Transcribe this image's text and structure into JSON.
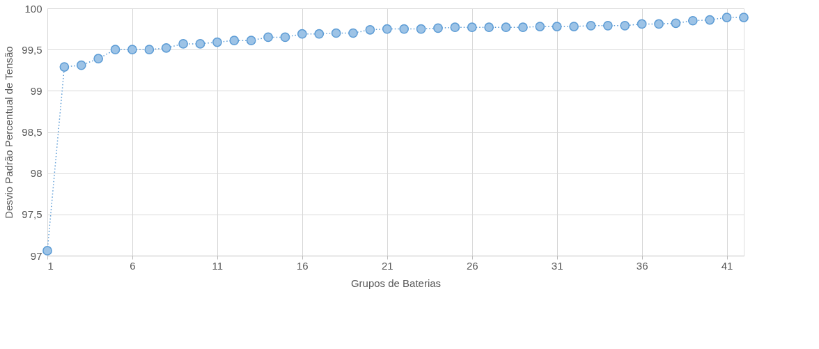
{
  "chart_data": {
    "type": "line",
    "xlabel": "Grupos de Baterias",
    "ylabel": "Desvio Padrão Percentual de Tensão",
    "x": [
      1,
      2,
      3,
      4,
      5,
      6,
      7,
      8,
      9,
      10,
      11,
      12,
      13,
      14,
      15,
      16,
      17,
      18,
      19,
      20,
      21,
      22,
      23,
      24,
      25,
      26,
      27,
      28,
      29,
      30,
      31,
      32,
      33,
      34,
      35,
      36,
      37,
      38,
      39,
      40,
      41,
      42
    ],
    "series": [
      {
        "color": "#5b9bd5",
        "values": [
          97.06,
          99.29,
          99.31,
          99.39,
          99.5,
          99.5,
          99.5,
          99.52,
          99.57,
          99.57,
          99.59,
          99.61,
          99.61,
          99.65,
          99.65,
          99.69,
          99.69,
          99.7,
          99.7,
          99.74,
          99.75,
          99.75,
          99.75,
          99.76,
          99.77,
          99.77,
          99.77,
          99.77,
          99.77,
          99.78,
          99.78,
          99.78,
          99.79,
          99.79,
          99.79,
          99.81,
          99.81,
          99.82,
          99.85,
          99.86,
          99.89,
          99.89
        ]
      }
    ],
    "xlim": [
      1,
      42
    ],
    "xticks": [
      1,
      6,
      11,
      16,
      21,
      26,
      31,
      36,
      41
    ],
    "ylim": [
      97,
      100
    ],
    "yticks": [
      97,
      {
        "value": 97.5,
        "label": "97,5"
      },
      98,
      {
        "value": 98.5,
        "label": "98,5"
      },
      99,
      {
        "value": 99.5,
        "label": "99,5"
      },
      100
    ],
    "grid": true,
    "marker": "circle",
    "line_style": "dotted"
  }
}
